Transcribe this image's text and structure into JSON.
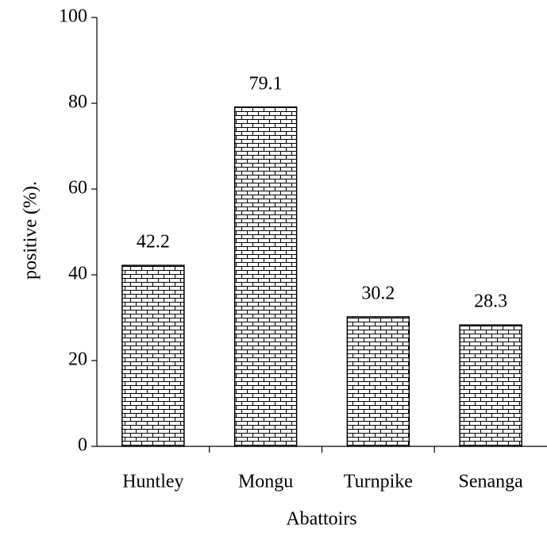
{
  "chart_data": {
    "type": "bar",
    "categories": [
      "Huntley",
      "Mongu",
      "Turnpike",
      "Senanga"
    ],
    "values": [
      42.2,
      79.1,
      30.2,
      28.3
    ],
    "ylim": [
      0,
      100
    ],
    "yticks": [
      0,
      20,
      40,
      60,
      80,
      100
    ],
    "y_label": "positive  (%).",
    "x_label": "Abattoirs",
    "grid": false,
    "pattern": "brick",
    "color": "#000000"
  }
}
